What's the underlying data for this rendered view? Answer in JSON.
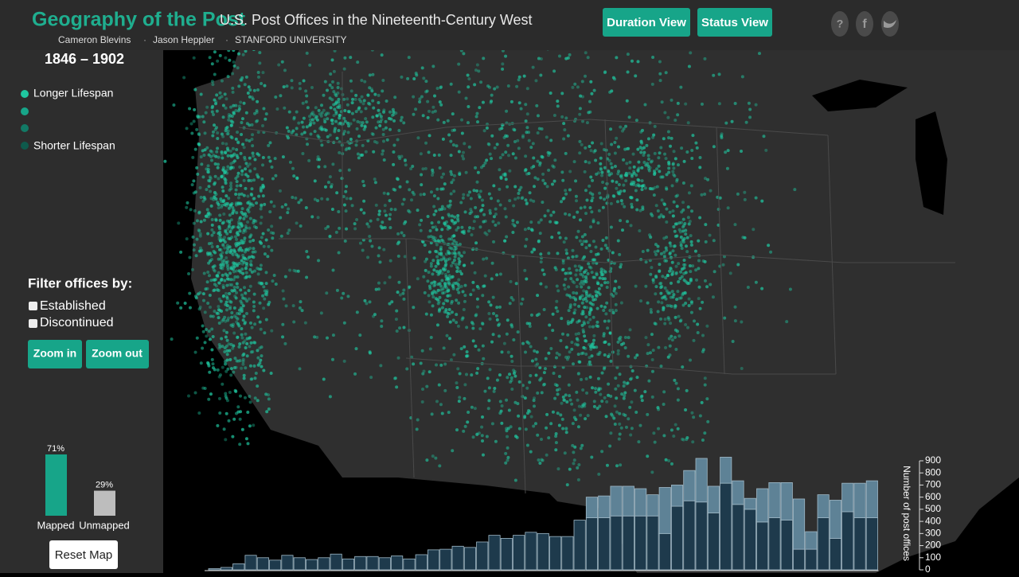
{
  "header": {
    "title": "Geography of the Post",
    "subtitle": "U.S. Post Offices in the Nineteenth-Century West",
    "credits": [
      "Cameron Blevins",
      "Jason Heppler",
      "STANFORD UNIVERSITY"
    ],
    "buttons": [
      "Duration View",
      "Status View"
    ],
    "icons": [
      "?",
      "f"
    ]
  },
  "sidebar": {
    "date_range": "1846 – 1902",
    "legend": {
      "high": "Longer Lifespan",
      "low": "Shorter Lifespan"
    },
    "filter": {
      "title": "Filter offices by:",
      "options": [
        "Established",
        "Discontinued"
      ],
      "buttons": [
        "Zoom in",
        "Zoom out"
      ]
    },
    "reset": "Reset Map"
  },
  "chart_data": [
    {
      "type": "bar",
      "categories": [
        "Mapped",
        "Unmapped"
      ],
      "values": [
        71,
        29
      ],
      "value_labels": [
        "71%",
        "29%"
      ],
      "colors": [
        "#17a589",
        "#bdbdbd"
      ]
    },
    {
      "type": "stacked-bar",
      "y_label": "Number of post offices",
      "ylim": [
        0,
        900
      ],
      "yticks": [
        0,
        100,
        200,
        300,
        400,
        500,
        600,
        700,
        800,
        900
      ],
      "series": [
        {
          "color": "#1e3a4c",
          "values": [
            10,
            20,
            50,
            120,
            100,
            80,
            120,
            100,
            85,
            100,
            130,
            90,
            110,
            110,
            100,
            115,
            90,
            125,
            165,
            170,
            195,
            185,
            230,
            285,
            260,
            285,
            310,
            300,
            275,
            275,
            410,
            430,
            430,
            445,
            445,
            445,
            445,
            300,
            525,
            570,
            560,
            470,
            715,
            540,
            500,
            395,
            430,
            410,
            170,
            170,
            430,
            260,
            480,
            430,
            430
          ]
        },
        {
          "color": "#5e8296",
          "values": [
            0,
            0,
            0,
            0,
            0,
            0,
            0,
            0,
            0,
            0,
            0,
            0,
            0,
            0,
            0,
            0,
            0,
            0,
            0,
            0,
            0,
            0,
            0,
            0,
            0,
            0,
            0,
            0,
            0,
            0,
            0,
            170,
            180,
            245,
            245,
            225,
            175,
            380,
            175,
            250,
            360,
            220,
            215,
            195,
            90,
            275,
            290,
            310,
            415,
            145,
            190,
            315,
            235,
            285,
            305
          ]
        }
      ]
    }
  ]
}
